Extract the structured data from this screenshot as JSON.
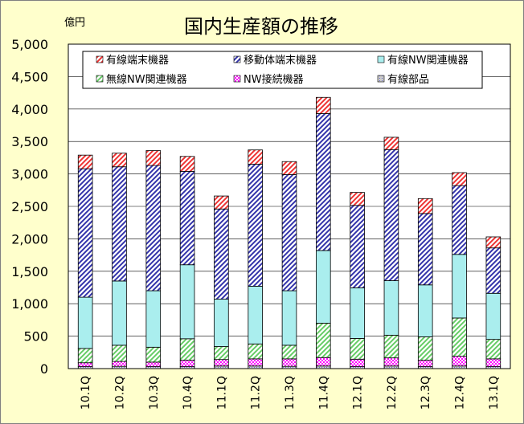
{
  "chart_data": {
    "type": "bar",
    "stacked": true,
    "title": "国内生産額の推移",
    "unit_label": "億円",
    "ylim": [
      0,
      5000
    ],
    "yticks": [
      0,
      500,
      1000,
      1500,
      2000,
      2500,
      3000,
      3500,
      4000,
      4500,
      5000
    ],
    "ytick_labels": [
      "0",
      "500",
      "1,000",
      "1,500",
      "2,000",
      "2,500",
      "3,000",
      "3,500",
      "4,000",
      "4,500",
      "5,000"
    ],
    "grid": true,
    "legend_position": "top",
    "categories": [
      "10.1Q",
      "10.2Q",
      "10.3Q",
      "10.4Q",
      "11.1Q",
      "11.2Q",
      "11.3Q",
      "11.4Q",
      "12.1Q",
      "12.2Q",
      "12.3Q",
      "12.4Q",
      "13.1Q"
    ],
    "series": [
      {
        "name": "有線部品",
        "color": "#6666cc",
        "pattern": "dots",
        "values": [
          30,
          35,
          30,
          30,
          40,
          40,
          35,
          40,
          30,
          40,
          30,
          40,
          30
        ]
      },
      {
        "name": "NW接続機器",
        "color": "#ff00ff",
        "pattern": "checker",
        "values": [
          60,
          75,
          70,
          100,
          100,
          110,
          115,
          130,
          115,
          125,
          100,
          150,
          120
        ]
      },
      {
        "name": "無線NW関連機器",
        "color": "#66cc66",
        "pattern": "diag",
        "values": [
          220,
          250,
          230,
          330,
          200,
          230,
          210,
          530,
          320,
          350,
          360,
          590,
          300
        ]
      },
      {
        "name": "有線NW関連機器",
        "color": "#aaeeee",
        "pattern": "solid",
        "values": [
          790,
          990,
          870,
          1140,
          730,
          890,
          840,
          1120,
          780,
          840,
          800,
          980,
          710
        ]
      },
      {
        "name": "移動体端末機器",
        "color": "#3333aa",
        "pattern": "diag",
        "values": [
          1980,
          1760,
          1930,
          1440,
          1390,
          1880,
          1790,
          2110,
          1270,
          2020,
          1100,
          1060,
          700
        ]
      },
      {
        "name": "有線端末機器",
        "color": "#ee3333",
        "pattern": "diag",
        "values": [
          210,
          210,
          230,
          230,
          200,
          220,
          200,
          250,
          200,
          190,
          230,
          200,
          170
        ]
      }
    ]
  },
  "legend_order": [
    "有線端末機器",
    "移動体端末機器",
    "有線NW関連機器",
    "無線NW関連機器",
    "NW接続機器",
    "有線部品"
  ]
}
